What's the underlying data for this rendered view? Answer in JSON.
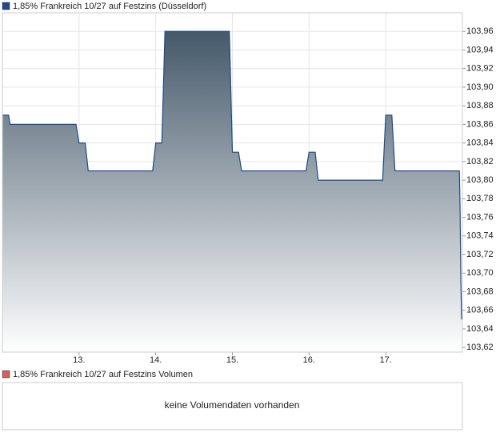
{
  "chart_data": {
    "type": "area",
    "series": [
      {
        "name": "1,85% Frankreich 10/27 auf Festzins (Düsseldorf)",
        "color": "#1f4a8a",
        "x": [
          12.0,
          12.08,
          12.1,
          12.96,
          13.0,
          13.08,
          13.12,
          13.96,
          14.0,
          14.08,
          14.12,
          14.96,
          15.0,
          15.08,
          15.12,
          15.96,
          16.0,
          16.08,
          16.12,
          16.96,
          17.0,
          17.08,
          17.12,
          17.96,
          17.97,
          17.98,
          17.99
        ],
        "values": [
          103.87,
          103.87,
          103.86,
          103.86,
          103.84,
          103.84,
          103.81,
          103.81,
          103.84,
          103.84,
          103.96,
          103.96,
          103.83,
          103.83,
          103.81,
          103.81,
          103.83,
          103.83,
          103.8,
          103.8,
          103.87,
          103.87,
          103.81,
          103.81,
          103.77,
          103.69,
          103.65
        ]
      }
    ],
    "area_gradient": [
      "#45596a",
      "#ffffff"
    ],
    "xlim": [
      12,
      18
    ],
    "xticks": [
      {
        "value": 13,
        "label": "13."
      },
      {
        "value": 14,
        "label": "14."
      },
      {
        "value": 15,
        "label": "15."
      },
      {
        "value": 16,
        "label": "16."
      },
      {
        "value": 17,
        "label": "17."
      }
    ],
    "ylim": [
      103.615,
      103.98
    ],
    "yticks": [
      {
        "value": 103.62,
        "label": "103,62"
      },
      {
        "value": 103.64,
        "label": "103,64"
      },
      {
        "value": 103.66,
        "label": "103,66"
      },
      {
        "value": 103.68,
        "label": "103,68"
      },
      {
        "value": 103.7,
        "label": "103,70"
      },
      {
        "value": 103.72,
        "label": "103,72"
      },
      {
        "value": 103.74,
        "label": "103,74"
      },
      {
        "value": 103.76,
        "label": "103,76"
      },
      {
        "value": 103.78,
        "label": "103,78"
      },
      {
        "value": 103.8,
        "label": "103,80"
      },
      {
        "value": 103.82,
        "label": "103,82"
      },
      {
        "value": 103.84,
        "label": "103,84"
      },
      {
        "value": 103.86,
        "label": "103,86"
      },
      {
        "value": 103.88,
        "label": "103,88"
      },
      {
        "value": 103.9,
        "label": "103,90"
      },
      {
        "value": 103.92,
        "label": "103,92"
      },
      {
        "value": 103.94,
        "label": "103,94"
      },
      {
        "value": 103.96,
        "label": "103,96"
      }
    ],
    "grid": true
  },
  "volume_panel": {
    "legend": "1,85% Frankreich 10/27 auf Festzins Volumen",
    "color": "#d06060",
    "message": "keine Volumendaten vorhanden"
  }
}
